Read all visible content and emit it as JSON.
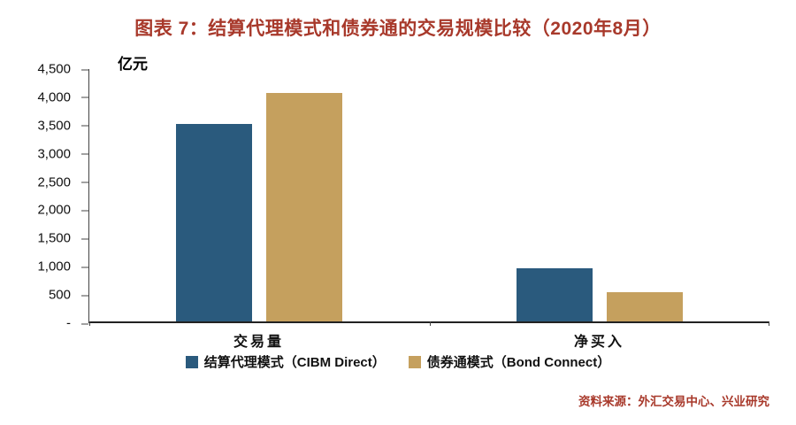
{
  "title": "图表 7：结算代理模式和债券通的交易规模比较（2020年8月）",
  "unit_label": "亿元",
  "source": "资料来源：外汇交易中心、兴业研究",
  "colors": {
    "accent_red": "#A8392B",
    "cibm_blue": "#2A5A7D",
    "bond_tan": "#C5A05E",
    "axis": "#333333"
  },
  "chart_data": {
    "type": "bar",
    "categories": [
      "交易量",
      "净买入"
    ],
    "series": [
      {
        "name": "结算代理模式（CIBM Direct）",
        "color": "#2A5A7D",
        "values": [
          3520,
          950
        ]
      },
      {
        "name": "债券通模式（Bond Connect）",
        "color": "#C5A05E",
        "values": [
          4080,
          520
        ]
      }
    ],
    "title": "图表 7：结算代理模式和债券通的交易规模比较（2020年8月）",
    "xlabel": "",
    "ylabel": "亿元",
    "ylim": [
      0,
      4500
    ],
    "y_tick_step": 500,
    "y_tick_labels": [
      "4,500",
      "4,000",
      "3,500",
      "3,000",
      "2,500",
      "2,000",
      "1,500",
      "1,000",
      "500",
      "-"
    ],
    "grid": false,
    "legend_position": "bottom"
  }
}
